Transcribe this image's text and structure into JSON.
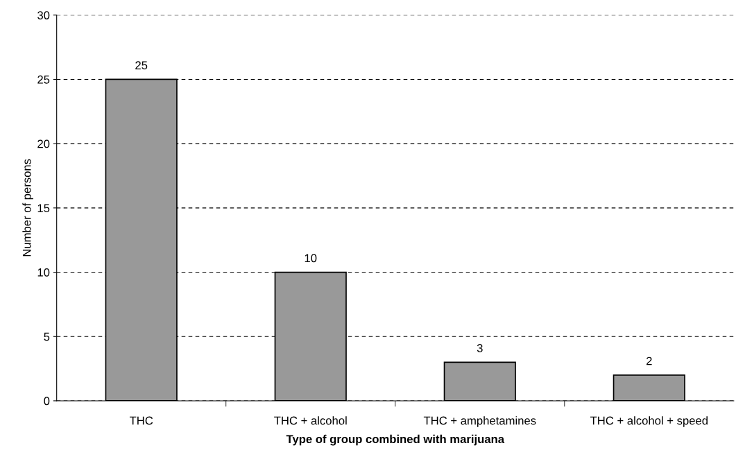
{
  "chart_data": {
    "type": "bar",
    "xlabel": "Type of group combined with marijuana",
    "ylabel": "Number of persons",
    "categories": [
      "THC",
      "THC + alcohol",
      "THC + amphetamines",
      "THC + alcohol + speed"
    ],
    "values": [
      25,
      10,
      3,
      2
    ],
    "color": "#999999",
    "ylim": [
      0,
      30
    ],
    "yticks": [
      0,
      5,
      10,
      15,
      20,
      25,
      30
    ],
    "grid": "y",
    "data_labels": true
  }
}
